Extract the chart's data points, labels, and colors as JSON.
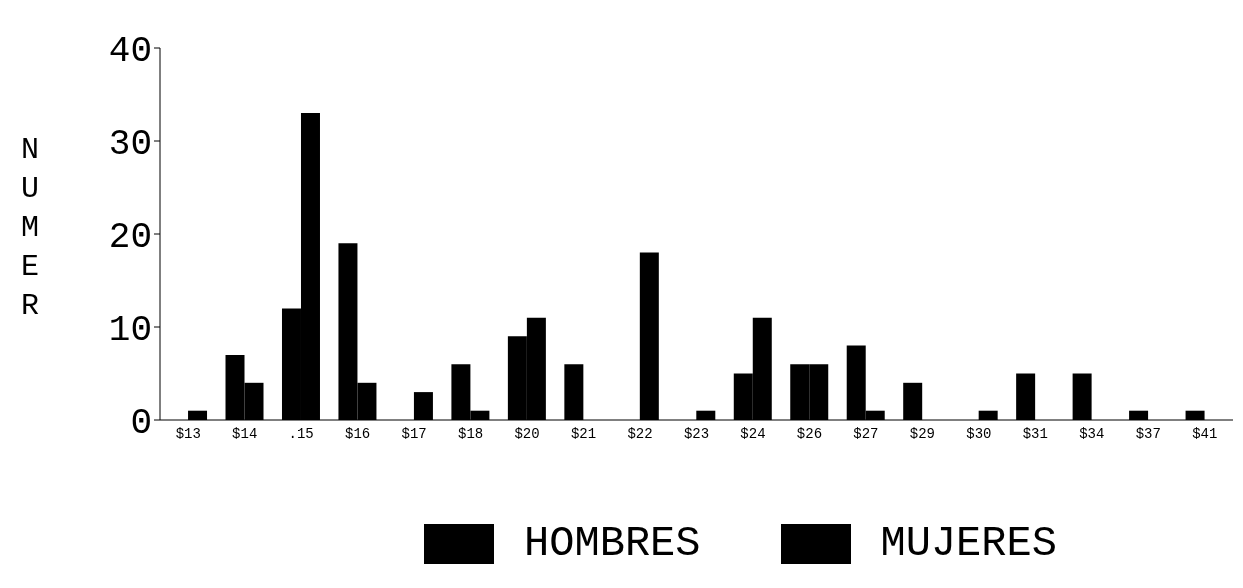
{
  "chart_data": {
    "type": "bar",
    "ylabel": "NUMER",
    "categories": [
      "$13",
      "$14",
      ".15",
      "$16",
      "$17",
      "$18",
      "$20",
      "$21",
      "$22",
      "$23",
      "$24",
      "$26",
      "$27",
      "$29",
      "$30",
      "$31",
      "$34",
      "$37",
      "$41"
    ],
    "series": [
      {
        "name": "HOMBRES",
        "color": "#000000",
        "values": [
          0,
          7,
          12,
          19,
          0,
          6,
          9,
          6,
          0,
          0,
          5,
          6,
          8,
          4,
          0,
          5,
          5,
          1,
          1
        ]
      },
      {
        "name": "MUJERES",
        "color": "#000000",
        "values": [
          1,
          4,
          33,
          4,
          3,
          1,
          11,
          0,
          18,
          1,
          11,
          6,
          1,
          0,
          1,
          0,
          0,
          0,
          0
        ]
      }
    ],
    "ylim": [
      0,
      40
    ],
    "yticks": [
      0,
      10,
      20,
      30,
      40
    ],
    "grid": false,
    "legend": "bottom"
  }
}
